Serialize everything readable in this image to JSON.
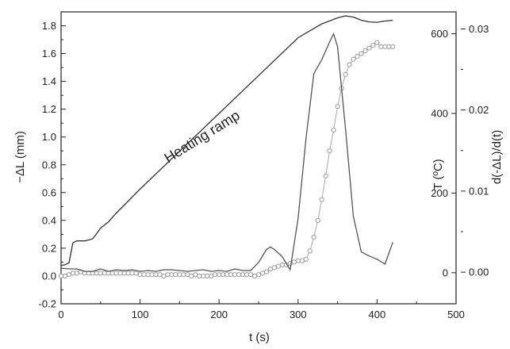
{
  "chart_data": {
    "type": "line",
    "title": "",
    "xlabel": "t (s)",
    "ylabel_left": "−ΔL (mm)",
    "ylabel_right_inner": "T (ºC)",
    "ylabel_right_outer": "d(-ΔL)/d(t)",
    "xlim": [
      0,
      500
    ],
    "ylim_left": [
      -0.2,
      1.9
    ],
    "ylim_right_T": [
      -78,
      655
    ],
    "ylim_right_rate": [
      -0.0039,
      0.0321
    ],
    "x_ticks": [
      0,
      100,
      200,
      300,
      400,
      500
    ],
    "x_tick_labels": [
      "0",
      "100",
      "200",
      "300",
      "400",
      "500"
    ],
    "y_left_ticks": [
      -0.2,
      0.0,
      0.2,
      0.4,
      0.6,
      0.8,
      1.0,
      1.2,
      1.4,
      1.6,
      1.8
    ],
    "y_left_tick_labels": [
      "-0.2",
      "0.0",
      "0.2",
      "0.4",
      "0.6",
      "0.8",
      "1.0",
      "1.2",
      "1.4",
      "1.6",
      "1.8"
    ],
    "y_T_ticks": [
      0,
      200,
      400,
      600
    ],
    "y_T_tick_labels": [
      "0",
      "200",
      "400",
      "600"
    ],
    "y_rate_ticks": [
      0.0,
      0.01,
      0.02,
      0.03
    ],
    "y_rate_tick_labels": [
      "0.00",
      "0.01",
      "0.02",
      "0.03"
    ],
    "annotation": "Heating ramp",
    "grid": false,
    "legend": "none",
    "series": [
      {
        "axis": "T",
        "style": "line",
        "color": "#333333",
        "x": [
          0,
          5,
          10,
          15,
          20,
          30,
          40,
          45,
          50,
          60,
          70,
          80,
          100,
          150,
          200,
          250,
          300,
          330,
          350,
          360,
          370,
          380,
          390,
          400,
          410,
          420
        ],
        "y": [
          18,
          20,
          25,
          75,
          80,
          80,
          85,
          98,
          112,
          128,
          150,
          170,
          210,
          305,
          400,
          495,
          590,
          625,
          640,
          645,
          642,
          634,
          630,
          629,
          632,
          634
        ]
      },
      {
        "axis": "left",
        "style": "markers",
        "color": "#999999",
        "x": [
          0,
          5,
          10,
          15,
          20,
          25,
          30,
          35,
          40,
          45,
          50,
          55,
          60,
          65,
          70,
          75,
          80,
          85,
          90,
          95,
          100,
          105,
          110,
          115,
          120,
          125,
          130,
          135,
          140,
          145,
          150,
          155,
          160,
          165,
          170,
          175,
          180,
          185,
          190,
          195,
          200,
          205,
          210,
          215,
          220,
          225,
          230,
          235,
          240,
          245,
          250,
          255,
          260,
          265,
          270,
          275,
          280,
          285,
          290,
          295,
          300,
          305,
          310,
          315,
          320,
          325,
          330,
          335,
          340,
          345,
          350,
          355,
          360,
          365,
          370,
          375,
          380,
          385,
          390,
          395,
          400,
          405,
          410,
          415,
          420
        ],
        "y": [
          0.0,
          0.0,
          0.01,
          0.02,
          0.02,
          0.03,
          0.02,
          0.02,
          0.02,
          0.02,
          0.02,
          0.02,
          0.02,
          0.02,
          0.02,
          0.02,
          0.02,
          0.02,
          0.02,
          0.02,
          0.01,
          0.01,
          0.01,
          0.01,
          0.01,
          0.01,
          0.0,
          0.01,
          0.01,
          0.01,
          0.01,
          0.01,
          0.01,
          0.0,
          0.01,
          0.0,
          0.0,
          0.0,
          0.0,
          0.01,
          0.01,
          0.01,
          0.01,
          0.01,
          0.01,
          0.01,
          0.01,
          0.01,
          0.01,
          0.0,
          0.01,
          0.02,
          0.03,
          0.05,
          0.06,
          0.07,
          0.08,
          0.08,
          0.09,
          0.1,
          0.11,
          0.11,
          0.12,
          0.18,
          0.28,
          0.4,
          0.55,
          0.72,
          0.9,
          1.05,
          1.22,
          1.35,
          1.45,
          1.52,
          1.56,
          1.58,
          1.6,
          1.62,
          1.64,
          1.66,
          1.68,
          1.65,
          1.65,
          1.65,
          1.65
        ]
      },
      {
        "axis": "rate",
        "style": "line",
        "color": "#555555",
        "x": [
          0,
          10,
          20,
          30,
          40,
          50,
          60,
          70,
          80,
          90,
          100,
          110,
          120,
          130,
          140,
          150,
          160,
          170,
          180,
          190,
          200,
          210,
          220,
          230,
          240,
          250,
          260,
          265,
          270,
          280,
          290,
          300,
          310,
          320,
          330,
          340,
          345,
          350,
          360,
          370,
          380,
          390,
          400,
          410,
          420
        ],
        "y": [
          0.0005,
          0.0004,
          0.0004,
          0.0001,
          0.0001,
          0.0004,
          0.0001,
          0.0003,
          0.0002,
          0.0003,
          0.0001,
          0.0002,
          0.0001,
          0.0003,
          0.0003,
          0.0002,
          0.0001,
          0.0002,
          0.0003,
          0.0001,
          0.0002,
          0.0001,
          0.0004,
          0.0002,
          0.0002,
          0.0012,
          0.0028,
          0.0031,
          0.0028,
          0.0019,
          0.0003,
          0.0066,
          0.0165,
          0.0245,
          0.0262,
          0.0284,
          0.0294,
          0.0278,
          0.0177,
          0.0069,
          0.0025,
          0.002,
          0.0016,
          0.001,
          0.0037
        ]
      }
    ]
  }
}
